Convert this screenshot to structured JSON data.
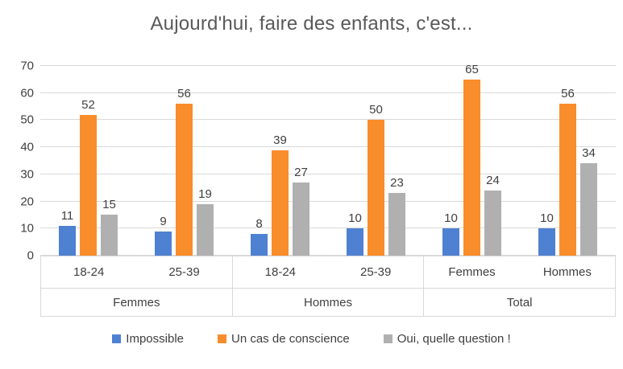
{
  "chart_data": {
    "type": "bar",
    "title": "Aujourd'hui, faire des enfants, c'est...",
    "xlabel": "",
    "ylabel": "",
    "ylim": [
      0,
      70
    ],
    "y_ticks": [
      0,
      10,
      20,
      30,
      40,
      50,
      60,
      70
    ],
    "grid": true,
    "legend_position": "bottom",
    "groups": [
      {
        "label": "Femmes",
        "categories": [
          "18-24",
          "25-39"
        ]
      },
      {
        "label": "Hommes",
        "categories": [
          "18-24",
          "25-39"
        ]
      },
      {
        "label": "Total",
        "categories": [
          "Femmes",
          "Hommes"
        ]
      }
    ],
    "series": [
      {
        "name": "Impossible",
        "color": "#4E81D1",
        "values": [
          11,
          9,
          8,
          10,
          10,
          10
        ]
      },
      {
        "name": "Un cas de conscience",
        "color": "#F98C2B",
        "values": [
          52,
          56,
          39,
          50,
          65,
          56
        ]
      },
      {
        "name": "Oui, quelle question !",
        "color": "#B0B0B0",
        "values": [
          15,
          19,
          27,
          23,
          24,
          34
        ]
      }
    ],
    "colors": {
      "gridline": "#D9D9D9",
      "axis_text": "#404040",
      "title_text": "#595959"
    }
  }
}
